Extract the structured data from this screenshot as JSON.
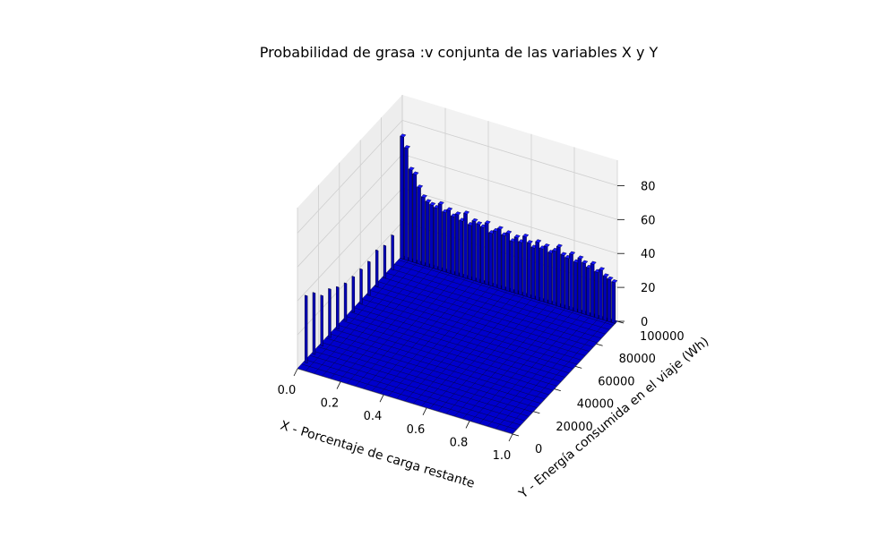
{
  "chart_data": {
    "type": "bar3d",
    "title": "Probabilidad de grasa :v conjunta de las variables X y Y",
    "xlabel": "X - Porcentaje de carga restante",
    "ylabel": "Y - Energía consumida en el viaje (Wh)",
    "zlabel": "",
    "xlim": [
      0,
      1
    ],
    "ylim": [
      0,
      100000
    ],
    "zlim": [
      0,
      95
    ],
    "x_ticks": [
      "0.0",
      "0.2",
      "0.4",
      "0.6",
      "0.8",
      "1.0"
    ],
    "y_ticks": [
      "0",
      "20000",
      "40000",
      "60000",
      "80000",
      "100000"
    ],
    "z_ticks": [
      "0",
      "20",
      "40",
      "60",
      "80"
    ],
    "bar_color": "#0000cc",
    "edge_color": "#000000",
    "grid": true,
    "bars_at_y_max": {
      "x": [
        0.0,
        0.02,
        0.04,
        0.06,
        0.08,
        0.1,
        0.12,
        0.14,
        0.16,
        0.18,
        0.2,
        0.22,
        0.24,
        0.26,
        0.28,
        0.3,
        0.32,
        0.34,
        0.36,
        0.38,
        0.4,
        0.42,
        0.44,
        0.46,
        0.48,
        0.5,
        0.52,
        0.54,
        0.56,
        0.58,
        0.6,
        0.62,
        0.64,
        0.66,
        0.68,
        0.7,
        0.72,
        0.74,
        0.76,
        0.78,
        0.8,
        0.82,
        0.84,
        0.86,
        0.88,
        0.9,
        0.92,
        0.94,
        0.96,
        0.98,
        1.0
      ],
      "z": [
        72,
        66,
        54,
        52,
        45,
        40,
        38,
        37,
        36,
        39,
        35,
        37,
        34,
        36,
        33,
        38,
        32,
        35,
        34,
        33,
        36,
        31,
        33,
        35,
        32,
        34,
        30,
        33,
        31,
        35,
        32,
        30,
        34,
        31,
        33,
        30,
        32,
        35,
        31,
        30,
        33,
        29,
        32,
        30,
        28,
        31,
        27,
        29,
        26,
        25,
        24
      ]
    },
    "floor_density": "near zero for y > 0"
  }
}
